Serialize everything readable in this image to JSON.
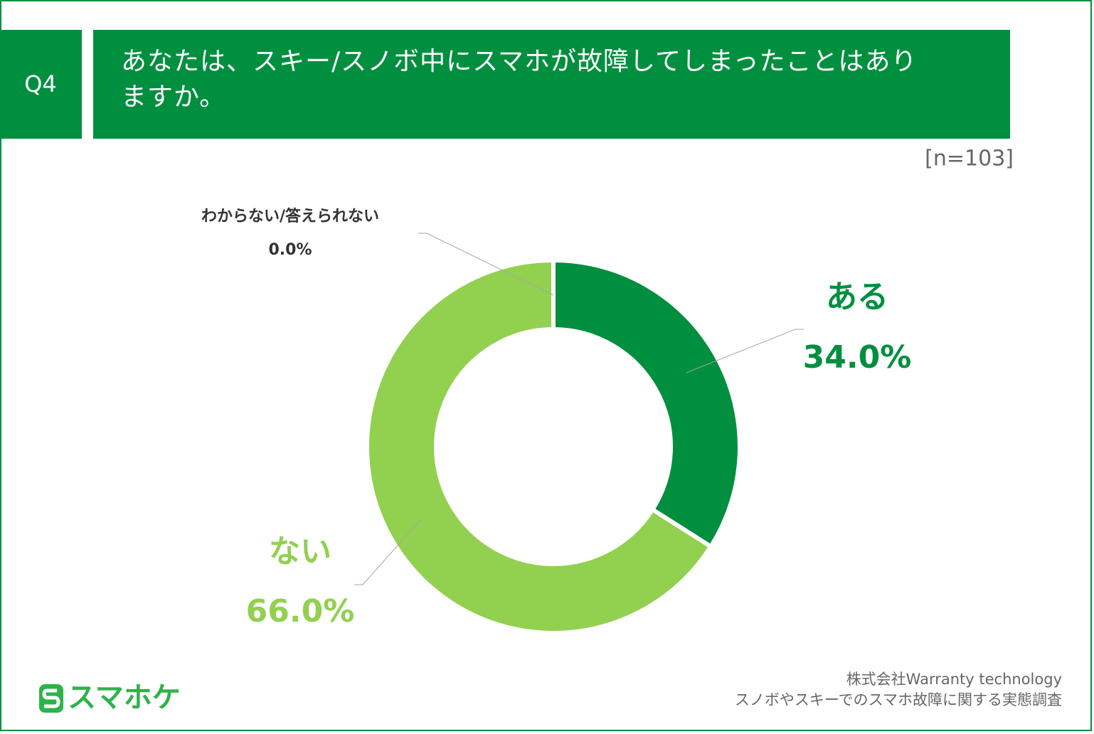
{
  "header": {
    "number": "Q4",
    "title": "あなたは、スキー/スノボ中にスマホが故障してしまったことはありますか。"
  },
  "chart_data": {
    "type": "donut",
    "note": "[n=103]",
    "categories": [
      "ある",
      "ない",
      "わからない/答えられない"
    ],
    "values": [
      34.0,
      66.0,
      0.0
    ],
    "value_labels": [
      "34.0%",
      "66.0%",
      "0.0%"
    ],
    "colors": [
      "#008f3f",
      "#92d050",
      "#a6a6a6"
    ],
    "label_colors": [
      "#008f3f",
      "#92d050",
      "#333333"
    ]
  },
  "footer": {
    "logo": "スマホケ",
    "source": [
      "株式会社Warranty technology",
      "スノボやスキーでのスマホ故障に関する実態調査"
    ]
  }
}
